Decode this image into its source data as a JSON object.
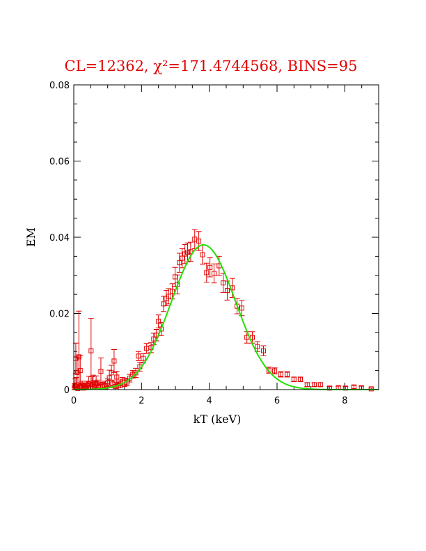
{
  "chart_data": {
    "type": "scatter",
    "title": "CL=12362, χ²=171.4744568, BINS=95",
    "xlabel": "kT (keV)",
    "ylabel": "EM",
    "xlim": [
      0,
      9
    ],
    "ylim": [
      0,
      0.08
    ],
    "xticks": [
      "0",
      "2",
      "4",
      "6",
      "8"
    ],
    "xtick_values": [
      0,
      2,
      4,
      6,
      8
    ],
    "yticks": [
      "0",
      "0.02",
      "0.04",
      "0.06",
      "0.08"
    ],
    "ytick_values": [
      0,
      0.02,
      0.04,
      0.06,
      0.08
    ],
    "grid": false,
    "colors": {
      "data": "#e00000",
      "fit": "#22e000",
      "title": "#e00000"
    },
    "series": [
      {
        "name": "data",
        "style": "square-markers-with-errorbars",
        "points": [
          [
            0.02,
            0.0005,
            0.001
          ],
          [
            0.04,
            0.001,
            0.002
          ],
          [
            0.06,
            0.0082,
            0.004
          ],
          [
            0.08,
            0.0012,
            0.002
          ],
          [
            0.1,
            0.0045,
            0.004
          ],
          [
            0.12,
            0.0003,
            0.001
          ],
          [
            0.15,
            0.0086,
            0.012
          ],
          [
            0.17,
            0.0008,
            0.001
          ],
          [
            0.19,
            0.005,
            0.004
          ],
          [
            0.22,
            0.0006,
            0.001
          ],
          [
            0.25,
            0.0012,
            0.001
          ],
          [
            0.28,
            0.0004,
            0.001
          ],
          [
            0.32,
            0.0008,
            0.001
          ],
          [
            0.36,
            0.0005,
            0.001
          ],
          [
            0.4,
            0.0012,
            0.001
          ],
          [
            0.44,
            0.0015,
            0.002
          ],
          [
            0.48,
            0.0006,
            0.001
          ],
          [
            0.51,
            0.0102,
            0.0085
          ],
          [
            0.54,
            0.0014,
            0.002
          ],
          [
            0.57,
            0.0018,
            0.002
          ],
          [
            0.6,
            0.0008,
            0.001
          ],
          [
            0.63,
            0.0012,
            0.001
          ],
          [
            0.66,
            0.0016,
            0.002
          ],
          [
            0.7,
            0.0015,
            0.001
          ],
          [
            0.74,
            0.0007,
            0.001
          ],
          [
            0.8,
            0.0048,
            0.0035
          ],
          [
            0.85,
            0.0009,
            0.001
          ],
          [
            0.9,
            0.0012,
            0.001
          ],
          [
            0.95,
            0.0006,
            0.001
          ],
          [
            1.0,
            0.0018,
            0.001
          ],
          [
            1.05,
            0.0031,
            0.002
          ],
          [
            1.11,
            0.0044,
            0.002
          ],
          [
            1.15,
            0.0015,
            0.001
          ],
          [
            1.19,
            0.0075,
            0.003
          ],
          [
            1.23,
            0.0008,
            0.001
          ],
          [
            1.27,
            0.0033,
            0.0015
          ],
          [
            1.32,
            0.001,
            0.001
          ],
          [
            1.38,
            0.0015,
            0.001
          ],
          [
            1.44,
            0.0022,
            0.001
          ],
          [
            1.5,
            0.0018,
            0.001
          ],
          [
            1.57,
            0.002,
            0.001
          ],
          [
            1.65,
            0.003,
            0.001
          ],
          [
            1.74,
            0.004,
            0.001
          ],
          [
            1.83,
            0.0044,
            0.0012
          ],
          [
            1.91,
            0.0088,
            0.0012
          ],
          [
            1.95,
            0.006,
            0.0012
          ],
          [
            2.05,
            0.0082,
            0.0012
          ],
          [
            2.15,
            0.0108,
            0.0013
          ],
          [
            2.28,
            0.011,
            0.0013
          ],
          [
            2.36,
            0.0133,
            0.0015
          ],
          [
            2.44,
            0.0143,
            0.0015
          ],
          [
            2.5,
            0.0179,
            0.0017
          ],
          [
            2.58,
            0.0159,
            0.0017
          ],
          [
            2.65,
            0.0225,
            0.002
          ],
          [
            2.73,
            0.024,
            0.002
          ],
          [
            2.8,
            0.0245,
            0.002
          ],
          [
            2.91,
            0.0258,
            0.002
          ],
          [
            2.99,
            0.0296,
            0.0025
          ],
          [
            3.06,
            0.0276,
            0.0025
          ],
          [
            3.12,
            0.0333,
            0.0025
          ],
          [
            3.2,
            0.0345,
            0.0025
          ],
          [
            3.28,
            0.0356,
            0.0025
          ],
          [
            3.36,
            0.036,
            0.0025
          ],
          [
            3.45,
            0.0362,
            0.0025
          ],
          [
            3.57,
            0.0395,
            0.0025
          ],
          [
            3.69,
            0.039,
            0.0025
          ],
          [
            3.8,
            0.0354,
            0.0025
          ],
          [
            3.92,
            0.0307,
            0.0025
          ],
          [
            4.02,
            0.0321,
            0.0025
          ],
          [
            4.14,
            0.0305,
            0.0025
          ],
          [
            4.29,
            0.0325,
            0.0025
          ],
          [
            4.41,
            0.028,
            0.0025
          ],
          [
            4.53,
            0.026,
            0.0025
          ],
          [
            4.68,
            0.0267,
            0.0025
          ],
          [
            4.82,
            0.0219,
            0.002
          ],
          [
            4.96,
            0.0214,
            0.002
          ],
          [
            5.11,
            0.0137,
            0.0015
          ],
          [
            5.27,
            0.0137,
            0.0015
          ],
          [
            5.42,
            0.0113,
            0.0013
          ],
          [
            5.6,
            0.0102,
            0.0013
          ],
          [
            5.76,
            0.0051,
            0.0008
          ],
          [
            5.93,
            0.0049,
            0.0008
          ],
          [
            6.11,
            0.004,
            0.0007
          ],
          [
            6.3,
            0.004,
            0.0007
          ],
          [
            6.5,
            0.0027,
            0.0006
          ],
          [
            6.69,
            0.0027,
            0.0006
          ],
          [
            6.89,
            0.0013,
            0.0005
          ],
          [
            7.1,
            0.0013,
            0.0005
          ],
          [
            7.28,
            0.0013,
            0.0005
          ],
          [
            7.55,
            0.0004,
            0.0004
          ],
          [
            7.81,
            0.0005,
            0.0004
          ],
          [
            8.02,
            0.0004,
            0.0004
          ],
          [
            8.27,
            0.0007,
            0.0004
          ],
          [
            8.49,
            0.0005,
            0.0004
          ],
          [
            8.78,
            0.0002,
            0.0002
          ]
        ]
      },
      {
        "name": "fit",
        "style": "line",
        "model": "gaussian",
        "peak": 0.038,
        "center": 3.83,
        "sigma": 0.95
      }
    ]
  }
}
